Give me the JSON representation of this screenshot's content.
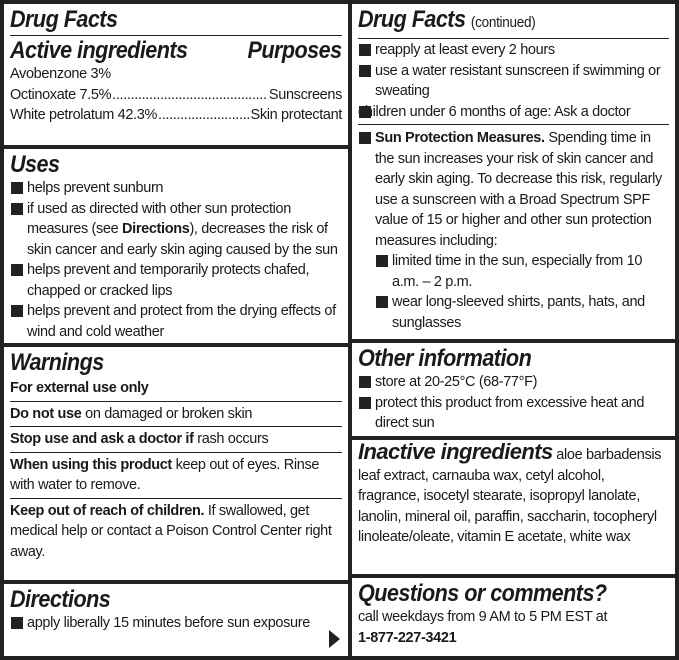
{
  "title": "Drug Facts",
  "active": {
    "heading": "Active ingredients",
    "purposes_heading": "Purposes",
    "items": [
      {
        "name": "Avobenzone 3%",
        "purpose": ""
      },
      {
        "name": "Octinoxate 7.5%",
        "purpose": "Sunscreens"
      },
      {
        "name": "White petrolatum 42.3%",
        "purpose": "Skin protectant"
      }
    ]
  },
  "uses": {
    "heading": "Uses",
    "items": [
      {
        "pre": "helps prevent sunburn"
      },
      {
        "pre": "if used as directed with other sun protection measures (see ",
        "bold": "Directions",
        "post": "), decreases the risk of skin cancer and early skin aging caused by the sun"
      },
      {
        "pre": "helps prevent and temporarily protects chafed, chapped or cracked lips"
      },
      {
        "pre": "helps prevent and protect from the drying effects of wind and cold weather"
      }
    ]
  },
  "warnings": {
    "heading": "Warnings",
    "items": [
      {
        "bold": "For external use only",
        "text": ""
      },
      {
        "bold": "Do not use",
        "text": " on damaged or broken skin"
      },
      {
        "bold": "Stop use and ask a doctor if",
        "text": " rash occurs"
      },
      {
        "bold": "When using this product",
        "text": " keep out of eyes. Rinse with water to remove."
      },
      {
        "bold": "Keep out of reach of children.",
        "text": " If swallowed, get medical help or contact a Poison Control Center right away."
      }
    ]
  },
  "directions": {
    "heading": "Directions",
    "items": [
      "apply liberally 15 minutes before sun exposure"
    ],
    "continue_icon": "arrow-right-icon"
  },
  "continued": {
    "heading": "Drug Facts",
    "sub": "(continued)",
    "items": [
      "reapply at least every 2 hours",
      "use a water resistant sunscreen if swimming or sweating",
      "children under 6 months of age: Ask a doctor"
    ],
    "spm_bold": "Sun Protection Measures.",
    "spm_text": " Spending time in the sun increases your risk of skin cancer and early skin aging. To decrease this risk, regularly use a sunscreen with a Broad Spectrum SPF value of 15 or higher and other sun protection measures including:",
    "spm_items": [
      "limited time in the sun, especially from 10 a.m. – 2 p.m.",
      "wear long-sleeved shirts, pants, hats, and sunglasses"
    ]
  },
  "other": {
    "heading": "Other information",
    "items": [
      "store at 20-25°C (68-77°F)",
      "protect this product from excessive heat and direct sun"
    ]
  },
  "inactive": {
    "heading": "Inactive ingredients",
    "text": " aloe barbadensis leaf extract, carnauba wax, cetyl alcohol, fragrance, isocetyl stearate, isopropyl lanolate, lanolin, mineral oil, paraffin, saccharin, tocopheryl linoleate/oleate, vitamin E acetate, white wax"
  },
  "questions": {
    "heading": "Questions or comments?",
    "text": "call weekdays from 9 AM to 5 PM EST at",
    "phone": "1-877-227-3421"
  }
}
